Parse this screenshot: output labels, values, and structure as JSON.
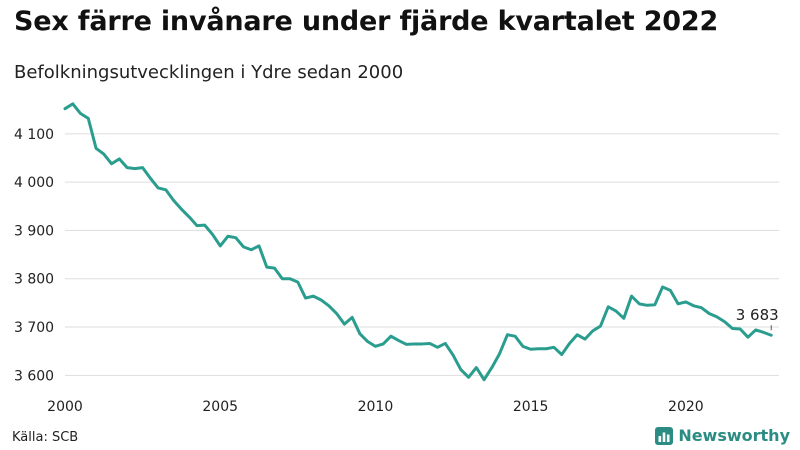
{
  "header": {
    "title": "Sex färre invånare under fjärde kvartalet 2022",
    "subtitle": "Befolkningsutvecklingen i Ydre sedan 2000"
  },
  "footer": {
    "source": "Källa: SCB",
    "brand": "Newsworthy",
    "brand_icon": "bar-chart-icon"
  },
  "colors": {
    "line": "#2a9d8f",
    "grid": "#dddddd",
    "brand": "#2a8c82"
  },
  "chart_data": {
    "type": "line",
    "title": "Sex färre invånare under fjärde kvartalet 2022",
    "subtitle": "Befolkningsutvecklingen i Ydre sedan 2000",
    "xlabel": "",
    "ylabel": "",
    "xlim": [
      2000,
      2023
    ],
    "ylim": [
      3580,
      4170
    ],
    "x_ticks": [
      2000,
      2005,
      2010,
      2015,
      2020
    ],
    "x_tick_labels": [
      "2000",
      "2005",
      "2010",
      "2015",
      "2020"
    ],
    "y_ticks": [
      3600,
      3700,
      3800,
      3900,
      4000,
      4100
    ],
    "y_tick_labels": [
      "3 600",
      "3 700",
      "3 800",
      "3 900",
      "4 000",
      "4 100"
    ],
    "grid": "horizontal",
    "end_label": "3 683",
    "series": [
      {
        "x": [
          2000.0,
          2000.25,
          2000.5,
          2000.75,
          2001.0,
          2001.25,
          2001.5,
          2001.75,
          2002.0,
          2002.25,
          2002.5,
          2002.75,
          2003.0,
          2003.25,
          2003.5,
          2003.75,
          2004.0,
          2004.25,
          2004.5,
          2004.75,
          2005.0,
          2005.25,
          2005.5,
          2005.75,
          2006.0,
          2006.25,
          2006.5,
          2006.75,
          2007.0,
          2007.25,
          2007.5,
          2007.75,
          2008.0,
          2008.25,
          2008.5,
          2008.75,
          2009.0,
          2009.25,
          2009.5,
          2009.75,
          2010.0,
          2010.25,
          2010.5,
          2010.75,
          2011.0,
          2011.25,
          2011.5,
          2011.75,
          2012.0,
          2012.25,
          2012.5,
          2012.75,
          2013.0,
          2013.25,
          2013.5,
          2013.75,
          2014.0,
          2014.25,
          2014.5,
          2014.75,
          2015.0,
          2015.25,
          2015.5,
          2015.75,
          2016.0,
          2016.25,
          2016.5,
          2016.75,
          2017.0,
          2017.25,
          2017.5,
          2017.75,
          2018.0,
          2018.25,
          2018.5,
          2018.75,
          2019.0,
          2019.25,
          2019.5,
          2019.75,
          2020.0,
          2020.25,
          2020.5,
          2020.75,
          2021.0,
          2021.25,
          2021.5,
          2021.75,
          2022.0,
          2022.25,
          2022.5,
          2022.75
        ],
        "values": [
          4152,
          4162,
          4142,
          4132,
          4070,
          4058,
          4038,
          4048,
          4030,
          4028,
          4030,
          4008,
          3988,
          3984,
          3962,
          3944,
          3928,
          3910,
          3911,
          3892,
          3868,
          3888,
          3885,
          3866,
          3860,
          3868,
          3824,
          3822,
          3800,
          3800,
          3793,
          3760,
          3764,
          3756,
          3744,
          3728,
          3706,
          3720,
          3686,
          3670,
          3660,
          3665,
          3681,
          3672,
          3664,
          3665,
          3665,
          3666,
          3658,
          3666,
          3642,
          3612,
          3596,
          3616,
          3591,
          3616,
          3645,
          3684,
          3681,
          3660,
          3654,
          3655,
          3655,
          3658,
          3643,
          3666,
          3684,
          3675,
          3692,
          3702,
          3742,
          3733,
          3718,
          3764,
          3748,
          3745,
          3746,
          3783,
          3776,
          3748,
          3752,
          3744,
          3740,
          3728,
          3721,
          3711,
          3697,
          3696,
          3679,
          3694,
          3689,
          3683
        ]
      }
    ]
  }
}
